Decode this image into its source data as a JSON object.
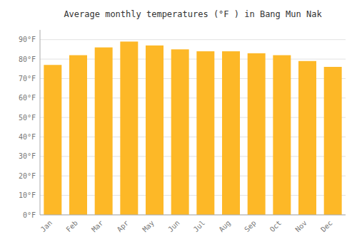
{
  "chart_data": {
    "type": "bar",
    "title": "Average monthly temperatures (°F ) in Bang Mun Nak",
    "categories": [
      "Jan",
      "Feb",
      "Mar",
      "Apr",
      "May",
      "Jun",
      "Jul",
      "Aug",
      "Sep",
      "Oct",
      "Nov",
      "Dec"
    ],
    "values": [
      77,
      82,
      86,
      89,
      87,
      85,
      84,
      84,
      83,
      82,
      79,
      76
    ],
    "color": "#FDB827",
    "ylim": [
      0,
      95
    ],
    "yticks": [
      {
        "value": 0,
        "label": "0°F"
      },
      {
        "value": 10,
        "label": "10°F"
      },
      {
        "value": 20,
        "label": "20°F"
      },
      {
        "value": 30,
        "label": "30°F"
      },
      {
        "value": 40,
        "label": "40°F"
      },
      {
        "value": 50,
        "label": "50°F"
      },
      {
        "value": 60,
        "label": "60°F"
      },
      {
        "value": 70,
        "label": "70°F"
      },
      {
        "value": 80,
        "label": "80°F"
      },
      {
        "value": 90,
        "label": "90°F"
      }
    ],
    "grid": true
  }
}
